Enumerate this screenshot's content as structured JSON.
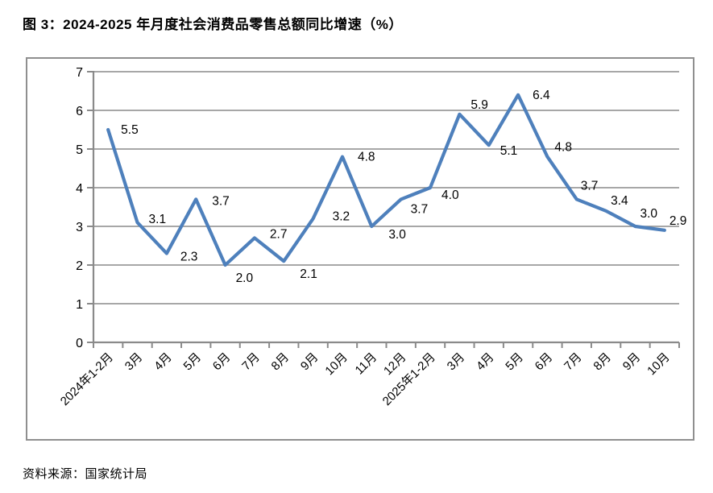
{
  "page": {
    "title": "图 3：2024-2025 年月度社会消费品零售总额同比增速（%）",
    "source": "资料来源：国家统计局"
  },
  "colors": {
    "line": "#4E80BC",
    "grid": "#8a8a8a",
    "axis": "#8a8a8a",
    "border": "#8f8f8f",
    "label": "#000000"
  },
  "chart_data": {
    "type": "line",
    "title": "图 3：2024-2025 年月度社会消费品零售总额同比增速（%）",
    "categories": [
      "2024年1-2月",
      "3月",
      "4月",
      "5月",
      "6月",
      "7月",
      "8月",
      "9月",
      "10月",
      "11月",
      "12月",
      "2025年1-2月",
      "3月",
      "4月",
      "5月",
      "6月",
      "7月",
      "8月",
      "9月",
      "10月"
    ],
    "values": [
      5.5,
      3.1,
      2.3,
      3.7,
      2.0,
      2.7,
      2.1,
      3.2,
      4.8,
      3.0,
      3.7,
      4.0,
      5.9,
      5.1,
      6.4,
      4.8,
      3.7,
      3.4,
      3.0,
      2.9
    ],
    "xlabel": "",
    "ylabel": "",
    "ylim": [
      0,
      7
    ],
    "yticks": [
      0,
      1,
      2,
      3,
      4,
      5,
      6,
      7
    ],
    "grid": true,
    "legend": "none",
    "data_labels": true,
    "x_tick_rotation": -45
  }
}
